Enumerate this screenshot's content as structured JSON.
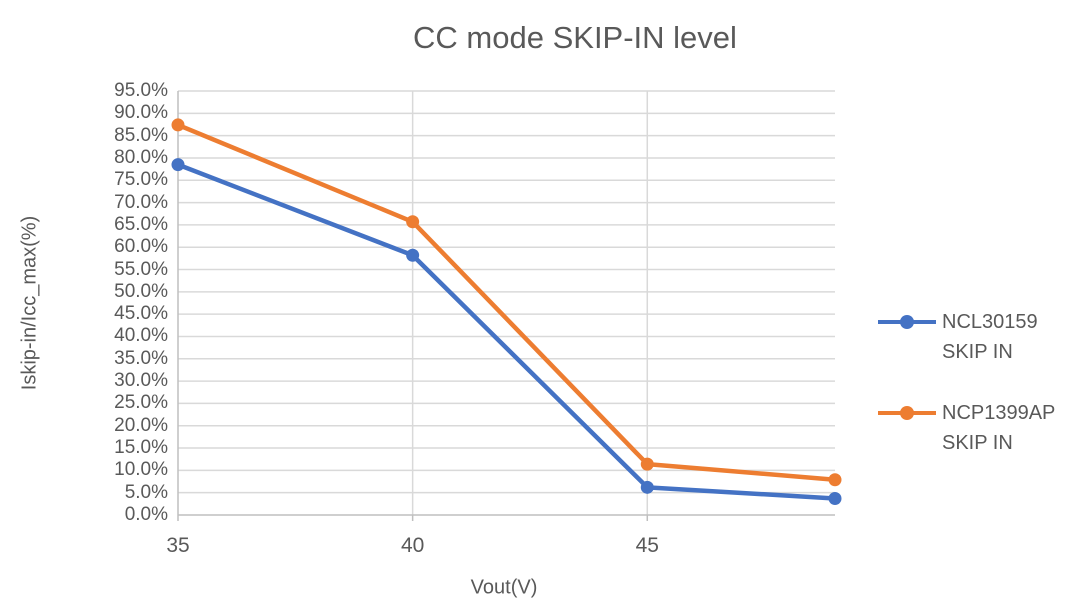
{
  "chart_data": {
    "type": "line",
    "title": "CC mode SKIP-IN level",
    "xlabel": "Vout(V)",
    "ylabel": "Iskip-in/Icc_max(%)",
    "x": [
      35,
      40,
      45,
      49
    ],
    "x_ticks": [
      35,
      40,
      45
    ],
    "xlim": [
      35,
      49
    ],
    "ylim": [
      0,
      95
    ],
    "y_tick_step": 5,
    "y_tick_suffix": "%",
    "grid": true,
    "legend_position": "right",
    "series": [
      {
        "name": "NCL30159",
        "sublabel": "SKIP IN",
        "color": "#4472C4",
        "values": [
          78.5,
          58.2,
          6.2,
          3.7
        ]
      },
      {
        "name": "NCP1399AP",
        "sublabel": "SKIP IN",
        "color": "#ED7D31",
        "values": [
          87.4,
          65.7,
          11.4,
          7.9
        ]
      }
    ],
    "colors": {
      "gridline": "#D9D9D9",
      "axis_line": "#BFBFBF",
      "text": "#595959",
      "background": "#FFFFFF"
    }
  }
}
